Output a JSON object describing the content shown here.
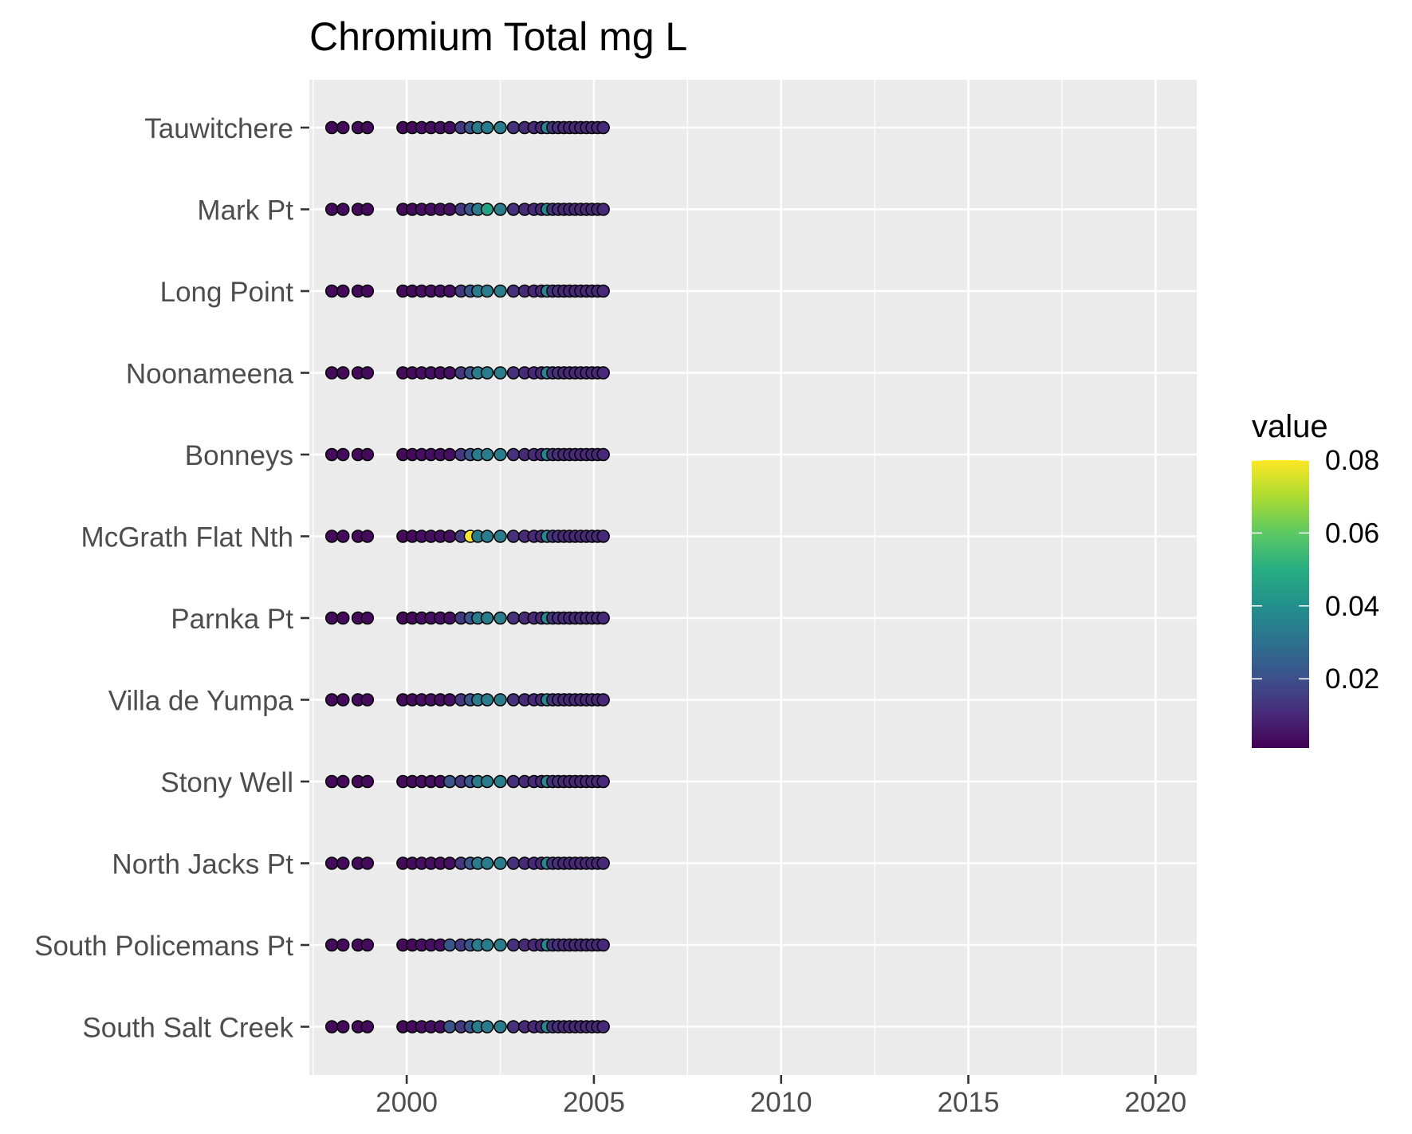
{
  "chart_data": {
    "type": "scatter",
    "title": "Chromium Total mg L",
    "xlabel": "",
    "ylabel": "",
    "xlim": [
      1997.4,
      2021.1
    ],
    "x_ticks": [
      2000,
      2005,
      2010,
      2015,
      2020
    ],
    "x_tick_labels": [
      "2000",
      "2005",
      "2010",
      "2015",
      "2020"
    ],
    "sites": [
      "Tauwitchere",
      "Mark Pt",
      "Long Point",
      "Noonameena",
      "Bonneys",
      "McGrath Flat Nth",
      "Parnka Pt",
      "Villa de Yumpa",
      "Stony Well",
      "North Jacks Pt",
      "South Policemans Pt",
      "South Salt Creek"
    ],
    "x": [
      1998.0,
      1998.3,
      1998.7,
      1998.95,
      1999.9,
      2000.15,
      2000.4,
      2000.65,
      2000.9,
      2001.15,
      2001.45,
      2001.7,
      2001.9,
      2002.15,
      2002.5,
      2002.85,
      2003.15,
      2003.4,
      2003.6,
      2003.75,
      2003.9,
      2004.05,
      2004.2,
      2004.35,
      2004.5,
      2004.65,
      2004.8,
      2004.95,
      2005.1,
      2005.25
    ],
    "values": [
      [
        0.003,
        0.003,
        0.003,
        0.003,
        0.003,
        0.003,
        0.004,
        0.004,
        0.004,
        0.004,
        0.014,
        0.022,
        0.034,
        0.034,
        0.034,
        0.012,
        0.01,
        0.01,
        0.01,
        0.038,
        0.012,
        0.012,
        0.01,
        0.01,
        0.01,
        0.01,
        0.01,
        0.01,
        0.01,
        0.01
      ],
      [
        0.003,
        0.003,
        0.003,
        0.003,
        0.003,
        0.003,
        0.004,
        0.004,
        0.004,
        0.004,
        0.014,
        0.022,
        0.034,
        0.046,
        0.034,
        0.012,
        0.01,
        0.01,
        0.01,
        0.038,
        0.012,
        0.012,
        0.01,
        0.01,
        0.01,
        0.01,
        0.01,
        0.01,
        0.01,
        0.01
      ],
      [
        0.003,
        0.003,
        0.003,
        0.003,
        0.003,
        0.003,
        0.004,
        0.004,
        0.004,
        0.004,
        0.014,
        0.022,
        0.034,
        0.034,
        0.034,
        0.012,
        0.01,
        0.01,
        0.01,
        0.038,
        0.012,
        0.012,
        0.01,
        0.01,
        0.01,
        0.01,
        0.01,
        0.01,
        0.01,
        0.01
      ],
      [
        0.003,
        0.003,
        0.003,
        0.003,
        0.003,
        0.003,
        0.004,
        0.004,
        0.004,
        0.004,
        0.014,
        0.022,
        0.034,
        0.034,
        0.034,
        0.012,
        0.01,
        0.01,
        0.01,
        0.038,
        0.012,
        0.012,
        0.01,
        0.01,
        0.01,
        0.01,
        0.01,
        0.01,
        0.01,
        0.01
      ],
      [
        0.003,
        0.003,
        0.003,
        0.003,
        0.003,
        0.003,
        0.004,
        0.004,
        0.004,
        0.004,
        0.014,
        0.022,
        0.034,
        0.034,
        0.034,
        0.012,
        0.01,
        0.01,
        0.01,
        0.038,
        0.012,
        0.012,
        0.01,
        0.01,
        0.01,
        0.01,
        0.01,
        0.01,
        0.01,
        0.01
      ],
      [
        0.003,
        0.003,
        0.003,
        0.003,
        0.003,
        0.003,
        0.004,
        0.004,
        0.004,
        0.004,
        0.014,
        0.08,
        0.034,
        0.034,
        0.034,
        0.012,
        0.01,
        0.01,
        0.01,
        0.038,
        0.012,
        0.012,
        0.01,
        0.01,
        0.01,
        0.01,
        0.01,
        0.01,
        0.01,
        0.01
      ],
      [
        0.003,
        0.003,
        0.003,
        0.003,
        0.003,
        0.003,
        0.004,
        0.004,
        0.004,
        0.004,
        0.014,
        0.022,
        0.034,
        0.034,
        0.034,
        0.012,
        0.01,
        0.01,
        0.01,
        0.038,
        0.012,
        0.012,
        0.01,
        0.01,
        0.01,
        0.01,
        0.01,
        0.01,
        0.01,
        0.01
      ],
      [
        0.003,
        0.003,
        0.003,
        0.003,
        0.003,
        0.003,
        0.004,
        0.004,
        0.004,
        0.004,
        0.014,
        0.022,
        0.034,
        0.034,
        0.034,
        0.012,
        0.01,
        0.01,
        0.01,
        0.038,
        0.012,
        0.012,
        0.01,
        0.01,
        0.01,
        0.01,
        0.01,
        0.01,
        0.01,
        0.01
      ],
      [
        0.003,
        0.003,
        0.003,
        0.003,
        0.003,
        0.003,
        0.004,
        0.004,
        0.004,
        0.022,
        0.014,
        0.022,
        0.034,
        0.034,
        0.034,
        0.012,
        0.01,
        0.01,
        0.01,
        0.038,
        0.012,
        0.012,
        0.01,
        0.01,
        0.01,
        0.01,
        0.01,
        0.01,
        0.01,
        0.01
      ],
      [
        0.003,
        0.003,
        0.003,
        0.003,
        0.003,
        0.003,
        0.004,
        0.004,
        0.004,
        0.004,
        0.014,
        0.022,
        0.034,
        0.034,
        0.034,
        0.012,
        0.01,
        0.01,
        0.01,
        0.038,
        0.012,
        0.012,
        0.01,
        0.01,
        0.01,
        0.01,
        0.01,
        0.01,
        0.01,
        0.01
      ],
      [
        0.003,
        0.003,
        0.003,
        0.003,
        0.003,
        0.003,
        0.004,
        0.004,
        0.004,
        0.022,
        0.014,
        0.022,
        0.034,
        0.034,
        0.034,
        0.012,
        0.01,
        0.01,
        0.01,
        0.038,
        0.012,
        0.012,
        0.01,
        0.01,
        0.01,
        0.01,
        0.01,
        0.01,
        0.01,
        0.01
      ],
      [
        0.003,
        0.003,
        0.003,
        0.003,
        0.003,
        0.003,
        0.004,
        0.004,
        0.004,
        0.022,
        0.014,
        0.022,
        0.034,
        0.034,
        0.034,
        0.012,
        0.01,
        0.01,
        0.01,
        0.038,
        0.012,
        0.012,
        0.01,
        0.01,
        0.01,
        0.01,
        0.01,
        0.01,
        0.01,
        0.01
      ]
    ],
    "legend": {
      "title": "value",
      "placement": "right",
      "min": 0.001,
      "max": 0.08,
      "ticks": [
        0.02,
        0.04,
        0.06,
        0.08
      ],
      "tick_labels": [
        "0.02",
        "0.04",
        "0.06",
        "0.08"
      ],
      "colorscale": "viridis"
    },
    "grid": true,
    "colors": {
      "panel_background": "#EBEBEB",
      "grid_line": "#FFFFFF",
      "point_outline": "#000000",
      "text": "#000000",
      "tick_label": "#4D4D4D"
    }
  }
}
